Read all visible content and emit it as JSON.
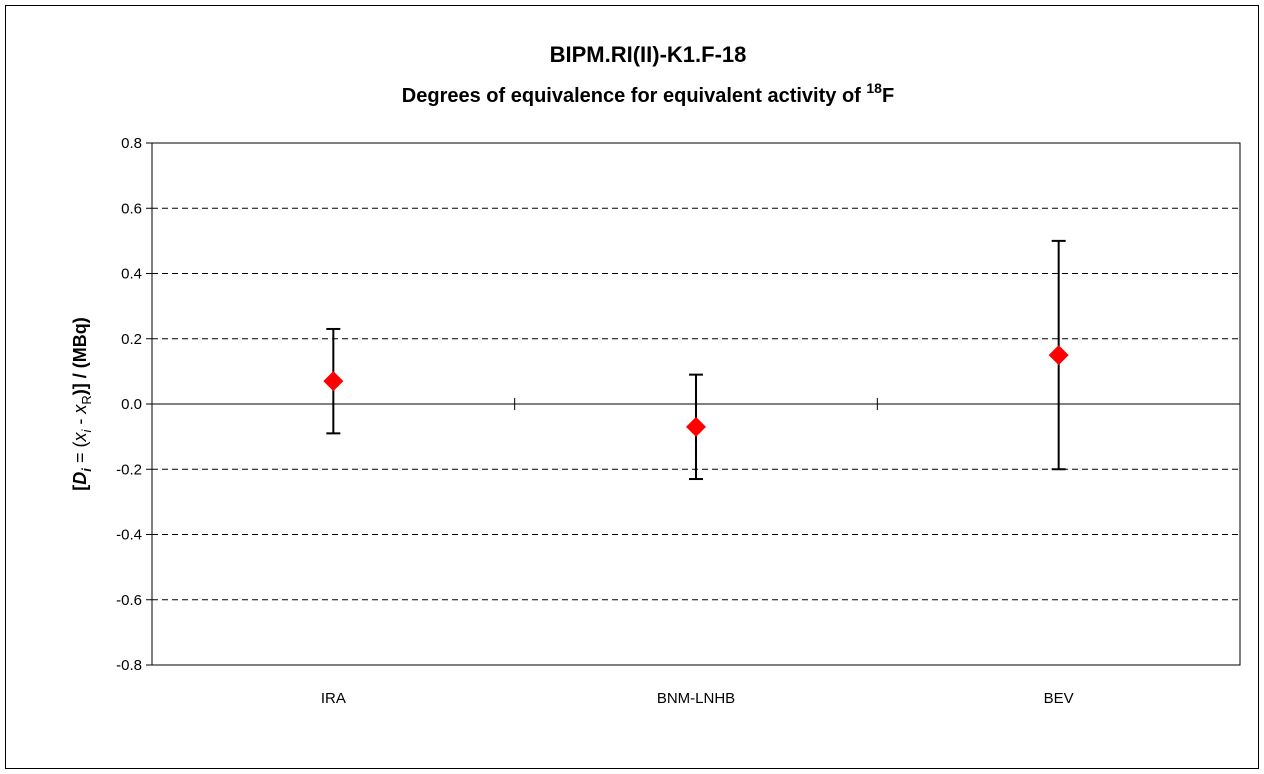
{
  "chart_data": {
    "type": "scatter",
    "title": "BIPM.RI(II)-K1.F-18",
    "subtitle": {
      "prefix": "Degrees of equivalence for equivalent activity of ",
      "sup": "18",
      "suffix": "F"
    },
    "ylabel": {
      "open": "[",
      "D": "D",
      "i_sub": "i",
      "eq": " = (",
      "x": "x",
      "dash": " - ",
      "xr": "x",
      "r_sub": "R",
      "close": ")] / (MBq)"
    },
    "ylim": [
      -0.8,
      0.8
    ],
    "yticks": [
      "0.8",
      "0.6",
      "0.4",
      "0.2",
      "0.0",
      "-0.2",
      "-0.4",
      "-0.6",
      "-0.8"
    ],
    "categories": [
      "IRA",
      "BNM-LNHB",
      "BEV"
    ],
    "values": [
      0.07,
      -0.07,
      0.15
    ],
    "error": [
      {
        "low": -0.09,
        "high": 0.23
      },
      {
        "low": -0.23,
        "high": 0.09
      },
      {
        "low": -0.2,
        "high": 0.5
      }
    ],
    "grid": true,
    "colors": {
      "marker": "#ff0000",
      "grid": "#000000",
      "errorbar": "#000000"
    }
  }
}
